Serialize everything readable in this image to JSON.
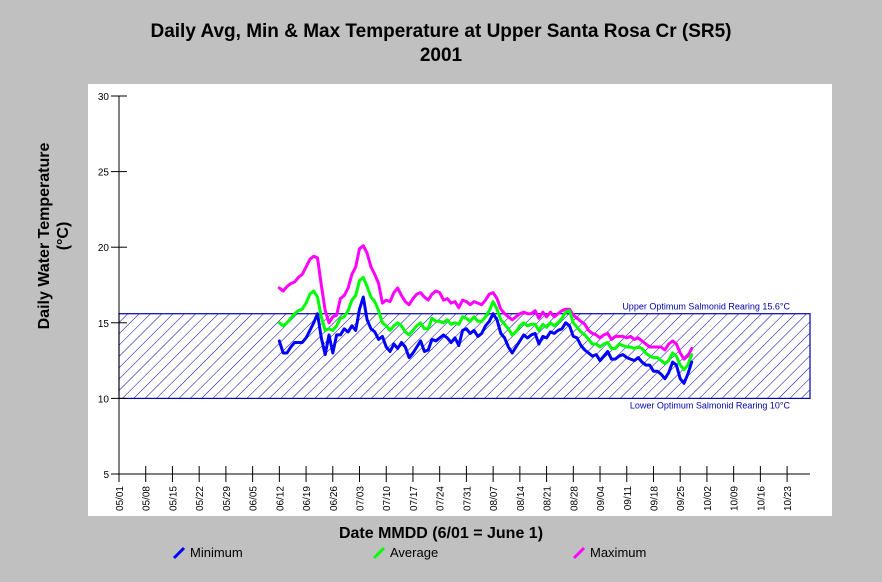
{
  "chart_data": {
    "type": "line",
    "title": [
      "Daily Avg, Min & Max Temperature at Upper Santa Rosa Cr (SR5)",
      "2001"
    ],
    "xlabel": "Date MMDD (6/01 = June 1)",
    "ylabel": [
      "Daily Water Temperature",
      "(°C)"
    ],
    "ylim": [
      5,
      30
    ],
    "yticks": [
      5,
      10,
      15,
      20,
      25,
      30
    ],
    "xlim": [
      "05/01",
      "10/29"
    ],
    "xticks": [
      "05/01",
      "05/08",
      "05/15",
      "05/22",
      "05/29",
      "06/05",
      "06/12",
      "06/19",
      "06/26",
      "07/03",
      "07/10",
      "07/17",
      "07/24",
      "07/31",
      "08/07",
      "08/14",
      "08/21",
      "08/28",
      "09/04",
      "09/11",
      "09/18",
      "09/25",
      "10/02",
      "10/09",
      "10/16",
      "10/23"
    ],
    "grid": false,
    "legend_position": "bottom",
    "x_start": "06/12",
    "series": [
      {
        "name": "Minimum",
        "color": "#0000ff",
        "values": [
          13.8,
          13.0,
          13.0,
          13.4,
          13.7,
          13.7,
          13.7,
          14.0,
          14.5,
          15.0,
          15.6,
          14.0,
          12.9,
          14.2,
          13.0,
          14.2,
          14.2,
          14.6,
          14.4,
          14.8,
          14.5,
          15.9,
          16.7,
          15.2,
          14.6,
          14.4,
          13.9,
          14.1,
          13.4,
          13.1,
          13.6,
          13.3,
          13.7,
          13.4,
          12.7,
          13.0,
          13.4,
          13.8,
          13.1,
          13.2,
          13.9,
          13.8,
          14.0,
          14.2,
          14.0,
          13.7,
          14.0,
          13.5,
          14.5,
          14.6,
          14.3,
          14.5,
          14.1,
          14.3,
          14.8,
          15.1,
          15.6,
          15.2,
          14.3,
          14.0,
          13.4,
          13.0,
          13.4,
          13.8,
          14.2,
          14.0,
          14.2,
          14.3,
          13.6,
          14.1,
          14.0,
          14.4,
          14.3,
          14.5,
          14.6,
          15.0,
          14.8,
          14.1,
          14.0,
          13.5,
          13.2,
          13.0,
          12.8,
          12.9,
          12.5,
          12.8,
          13.1,
          12.6,
          12.6,
          12.8,
          12.9,
          12.7,
          12.6,
          12.5,
          12.7,
          12.4,
          12.2,
          12.2,
          11.8,
          11.8,
          11.6,
          11.3,
          11.7,
          12.4,
          12.2,
          11.3,
          11.0,
          11.6,
          12.4
        ]
      },
      {
        "name": "Average",
        "color": "#00ff00",
        "values": [
          15.0,
          14.8,
          15.0,
          15.3,
          15.6,
          15.8,
          15.9,
          16.3,
          16.9,
          17.1,
          16.7,
          15.4,
          14.5,
          14.6,
          14.5,
          14.8,
          15.3,
          15.4,
          15.8,
          16.5,
          16.8,
          17.8,
          18.0,
          17.4,
          16.7,
          16.4,
          15.8,
          15.0,
          14.8,
          14.5,
          14.8,
          15.0,
          14.8,
          14.4,
          14.2,
          14.5,
          14.8,
          15.0,
          14.6,
          14.6,
          15.3,
          15.1,
          15.1,
          15.0,
          15.2,
          14.9,
          15.0,
          14.9,
          15.4,
          15.3,
          15.1,
          15.4,
          15.1,
          15.1,
          15.4,
          15.8,
          16.4,
          15.9,
          15.2,
          14.9,
          14.6,
          14.2,
          14.4,
          14.8,
          15.0,
          14.8,
          14.9,
          14.9,
          14.5,
          14.9,
          14.7,
          15.0,
          14.8,
          15.0,
          15.3,
          15.7,
          15.8,
          15.0,
          14.7,
          14.4,
          14.2,
          13.9,
          13.6,
          13.6,
          13.4,
          13.6,
          13.7,
          13.3,
          13.3,
          13.6,
          13.5,
          13.4,
          13.4,
          13.3,
          13.4,
          13.3,
          13.0,
          12.8,
          12.7,
          12.7,
          12.5,
          12.3,
          12.5,
          13.0,
          12.8,
          12.2,
          11.9,
          12.2,
          12.9
        ]
      },
      {
        "name": "Maximum",
        "color": "#ff00ff",
        "values": [
          17.3,
          17.1,
          17.4,
          17.6,
          17.7,
          18.0,
          18.2,
          18.7,
          19.2,
          19.4,
          19.3,
          17.5,
          15.8,
          15.0,
          15.4,
          15.5,
          16.6,
          16.8,
          17.3,
          18.2,
          18.7,
          19.9,
          20.1,
          19.6,
          18.7,
          18.2,
          17.6,
          16.3,
          16.5,
          16.4,
          17.0,
          17.3,
          16.8,
          16.4,
          16.2,
          16.6,
          16.9,
          17.0,
          16.7,
          16.5,
          16.9,
          17.1,
          17.0,
          16.5,
          16.6,
          16.3,
          16.4,
          16.0,
          16.5,
          16.4,
          16.2,
          16.4,
          16.3,
          16.2,
          16.5,
          16.9,
          17.0,
          16.6,
          15.9,
          15.6,
          15.4,
          15.2,
          15.4,
          15.6,
          15.7,
          15.6,
          15.6,
          15.8,
          15.3,
          15.7,
          15.4,
          15.7,
          15.4,
          15.6,
          15.8,
          15.9,
          15.9,
          15.5,
          15.3,
          15.1,
          14.9,
          14.5,
          14.3,
          14.2,
          14.0,
          14.2,
          14.3,
          13.9,
          14.1,
          14.1,
          14.1,
          14.0,
          14.1,
          13.9,
          14.0,
          13.8,
          13.6,
          13.4,
          13.4,
          13.4,
          13.4,
          13.2,
          13.6,
          13.8,
          13.6,
          13.0,
          12.6,
          12.8,
          13.3
        ]
      }
    ],
    "bands": [
      {
        "low": 10,
        "high": 15.6,
        "color": "#0000aa",
        "pattern": "diagonal-hatch",
        "upper_label": "Upper Optimum Salmonid Rearing 15.6°C",
        "lower_label": "Lower Optimum Salmonid Rearing 10°C"
      }
    ]
  }
}
